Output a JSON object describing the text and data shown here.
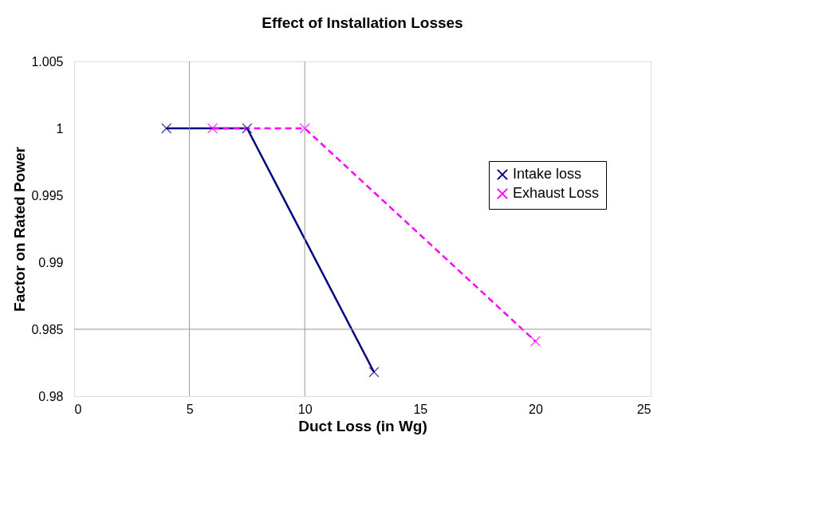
{
  "chart_data": {
    "type": "line",
    "title": "Effect of Installation Losses",
    "xlabel": "Duct Loss (in Wg)",
    "ylabel": "Factor on Rated Power",
    "series": [
      {
        "name": "Intake loss",
        "color": "#000080",
        "x": [
          4,
          7.5,
          13
        ],
        "values": [
          1,
          1,
          0.9818
        ],
        "marker": "cross",
        "line_style": "solid"
      },
      {
        "name": "Exhaust Loss",
        "color": "#ff00ff",
        "x": [
          6,
          10,
          20
        ],
        "values": [
          1,
          1,
          0.9841
        ],
        "marker": "cross",
        "line_style": "dashed"
      }
    ],
    "xlim": [
      0,
      25
    ],
    "xticks": [
      0,
      5,
      10,
      15,
      20,
      25
    ],
    "ylim": [
      0.98,
      1.005
    ],
    "yticks": [
      0.98,
      0.985,
      0.99,
      0.995,
      1,
      1.005
    ],
    "ref_lines": [
      {
        "axis": "x",
        "value": 5,
        "label": null
      },
      {
        "axis": "x",
        "value": 10,
        "label": null
      },
      {
        "axis": "y",
        "value": 0.985,
        "label": null
      }
    ],
    "grid": false,
    "legend": "right"
  }
}
